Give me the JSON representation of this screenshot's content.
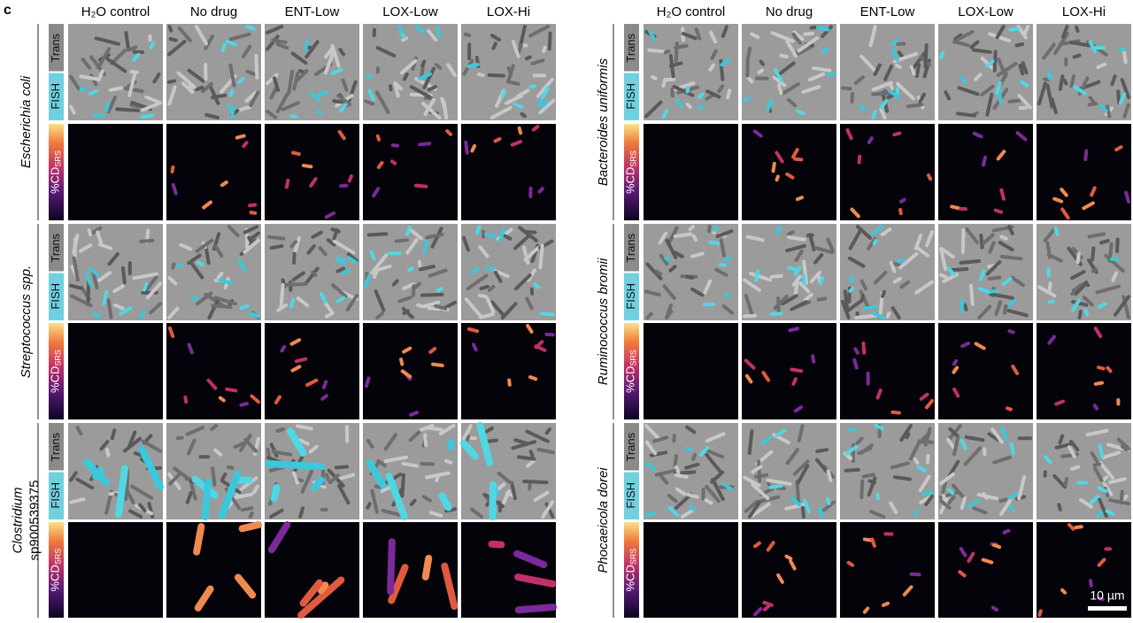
{
  "panel_label": "c",
  "row_labels": {
    "trans": "Trans",
    "fish": "FISH",
    "srs": {
      "main": "%CD",
      "sub": "SRS"
    }
  },
  "left": {
    "columns": [
      "H₂O control",
      "No drug",
      "ENT-Low",
      "LOX-Low",
      "LOX-Hi"
    ],
    "groups": [
      {
        "species": [
          "Escherichia coli"
        ]
      },
      {
        "species": [
          "Streptococcus spp."
        ]
      },
      {
        "species": [
          "Clostridium",
          "sp900539375"
        ]
      }
    ]
  },
  "right": {
    "columns": [
      "H₂O control",
      "No drug",
      "ENT-Low",
      "LOX-Low",
      "LOX-Hi"
    ],
    "groups": [
      {
        "species": [
          "Bacteroides uniformis"
        ]
      },
      {
        "species": [
          "Ruminococcus bromii"
        ]
      },
      {
        "species": [
          "Phocaeicola dorei"
        ]
      }
    ]
  },
  "scale_bar": "10 µm"
}
